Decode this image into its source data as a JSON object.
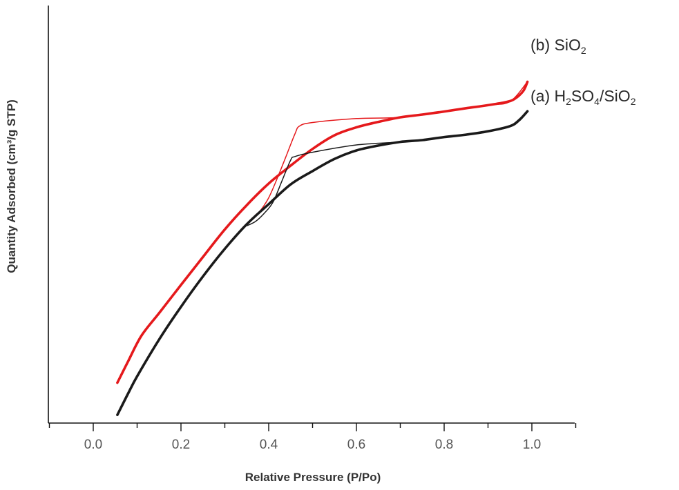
{
  "chart_data": {
    "type": "line",
    "xlabel": "Relative Pressure (P/Po)",
    "ylabel": "Quantity Adsorbed (cm³/g STP)",
    "xlim": [
      -0.1,
      1.1
    ],
    "ylim": [
      0,
      100
    ],
    "x_ticks": [
      0.0,
      0.2,
      0.4,
      0.6,
      0.8,
      1.0
    ],
    "x_tick_labels": [
      "0.0",
      "0.2",
      "0.4",
      "0.6",
      "0.8",
      "1.0"
    ],
    "y_ticks_shown": false,
    "grid": false,
    "series": [
      {
        "name": "(b) SiO2",
        "label_prefix": "(b) SiO",
        "label_subscript": "2",
        "label_parts": [],
        "color": "#e5191c",
        "adsorption": {
          "x": [
            0.055,
            0.08,
            0.11,
            0.15,
            0.2,
            0.25,
            0.3,
            0.35,
            0.4,
            0.45,
            0.5,
            0.55,
            0.6,
            0.65,
            0.7,
            0.75,
            0.8,
            0.85,
            0.9,
            0.94,
            0.96,
            0.98,
            0.99
          ],
          "y": [
            12.6,
            19.8,
            28.1,
            35.5,
            44.8,
            54.0,
            63.1,
            71.1,
            78.2,
            84.1,
            89.6,
            94.1,
            96.7,
            98.5,
            100.0,
            100.9,
            101.9,
            103.0,
            104.0,
            105.0,
            106.0,
            108.6,
            111.7
          ]
        },
        "desorption": {
          "x": [
            0.99,
            0.95,
            0.9,
            0.8,
            0.7,
            0.6,
            0.5,
            0.47,
            0.46,
            0.44,
            0.42,
            0.4,
            0.38,
            0.37
          ],
          "y": [
            111.7,
            105.2,
            104.0,
            101.9,
            100.0,
            99.6,
            98.3,
            97.1,
            94.6,
            87.3,
            80.1,
            73.5,
            69.1,
            67.9
          ]
        }
      },
      {
        "name": "(a) H2SO4/SiO2",
        "label_prefix": "",
        "label_subscript": "",
        "label_parts": [
          {
            "t": "(a) H",
            "sub": false
          },
          {
            "t": "2",
            "sub": true
          },
          {
            "t": "SO",
            "sub": false
          },
          {
            "t": "4",
            "sub": true
          },
          {
            "t": "/SiO",
            "sub": false
          },
          {
            "t": "2",
            "sub": true
          }
        ],
        "color": "#1a1a1a",
        "adsorption": {
          "x": [
            0.055,
            0.08,
            0.1,
            0.15,
            0.2,
            0.25,
            0.3,
            0.35,
            0.4,
            0.45,
            0.5,
            0.55,
            0.6,
            0.65,
            0.7,
            0.75,
            0.8,
            0.85,
            0.9,
            0.95,
            0.97,
            0.99
          ],
          "y": [
            2.0,
            9.2,
            14.7,
            26.8,
            37.6,
            47.6,
            56.7,
            64.8,
            71.4,
            77.9,
            82.3,
            86.3,
            89.1,
            90.7,
            91.9,
            92.5,
            93.5,
            94.3,
            95.4,
            97.1,
            98.9,
            102.0
          ]
        },
        "desorption": {
          "x": [
            0.99,
            0.95,
            0.9,
            0.8,
            0.7,
            0.6,
            0.5,
            0.46,
            0.45,
            0.43,
            0.41,
            0.39,
            0.37,
            0.35
          ],
          "y": [
            102.0,
            97.1,
            95.4,
            93.5,
            91.9,
            90.9,
            88.5,
            87.1,
            85.9,
            79.0,
            72.1,
            68.4,
            65.7,
            64.3
          ]
        }
      }
    ]
  }
}
